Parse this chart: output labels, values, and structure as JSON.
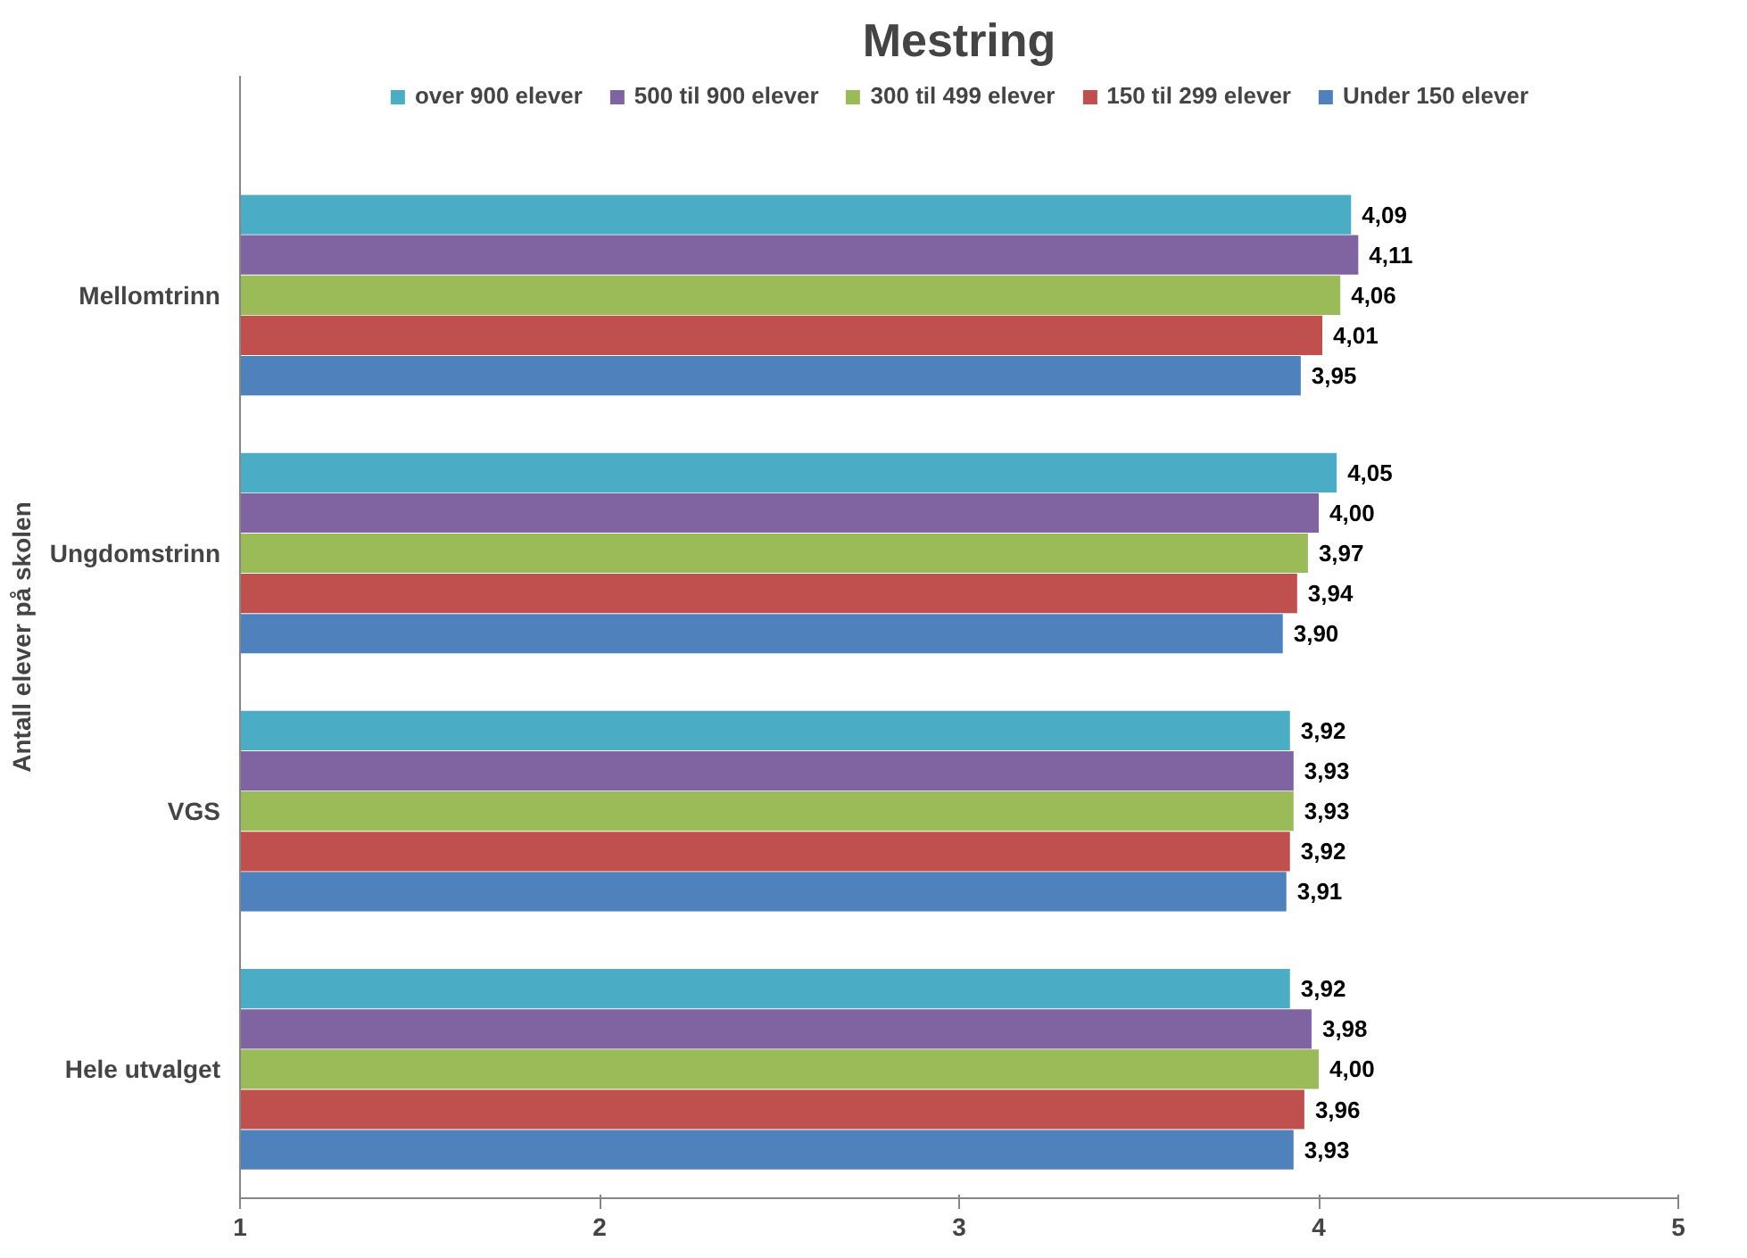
{
  "chart_data": {
    "type": "bar",
    "orientation": "horizontal",
    "title": "Mestring",
    "ylabel": "Antall elever på skolen",
    "categories": [
      "Mellomtrinn",
      "Ungdomstrinn",
      "VGS",
      "Hele utvalget"
    ],
    "series": [
      {
        "name": "over 900 elever",
        "color": "#4bacc6",
        "values": [
          4.09,
          4.05,
          3.92,
          3.92
        ],
        "value_labels": [
          "4,09",
          "4,05",
          "3,92",
          "3,92"
        ]
      },
      {
        "name": "500 til 900 elever",
        "color": "#8064a2",
        "values": [
          4.11,
          4.0,
          3.93,
          3.98
        ],
        "value_labels": [
          "4,11",
          "4,00",
          "3,93",
          "3,98"
        ]
      },
      {
        "name": "300 til 499 elever",
        "color": "#9bbb59",
        "values": [
          4.06,
          3.97,
          3.93,
          4.0
        ],
        "value_labels": [
          "4,06",
          "3,97",
          "3,93",
          "4,00"
        ]
      },
      {
        "name": "150 til 299 elever",
        "color": "#c0504d",
        "values": [
          4.01,
          3.94,
          3.92,
          3.96
        ],
        "value_labels": [
          "4,01",
          "3,94",
          "3,92",
          "3,96"
        ]
      },
      {
        "name": "Under 150 elever",
        "color": "#4f81bd",
        "values": [
          3.95,
          3.9,
          3.91,
          3.93
        ],
        "value_labels": [
          "3,95",
          "3,90",
          "3,91",
          "3,93"
        ]
      }
    ],
    "xlim": [
      1,
      5
    ],
    "xticks": [
      1,
      2,
      3,
      4,
      5
    ],
    "grid": false,
    "legend": "top"
  }
}
